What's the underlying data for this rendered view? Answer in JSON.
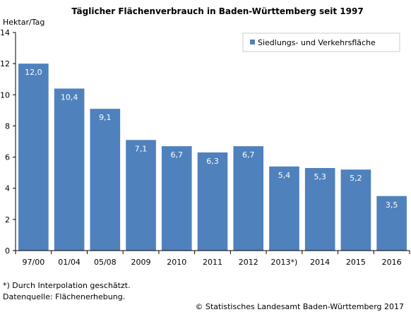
{
  "chart_data": {
    "type": "bar",
    "title": "Täglicher Flächenverbrauch in Baden-Württemberg seit 1997",
    "ylabel": "Hektar/Tag",
    "xlabel": "",
    "categories": [
      "97/00",
      "01/04",
      "05/08",
      "2009",
      "2010",
      "2011",
      "2012",
      "2013*)",
      "2014",
      "2015",
      "2016"
    ],
    "series": [
      {
        "name": "Siedlungs- und Verkehrsfläche",
        "values": [
          12.0,
          10.4,
          9.1,
          7.1,
          6.7,
          6.3,
          6.7,
          5.4,
          5.3,
          5.2,
          3.5
        ],
        "value_labels": [
          "12,0",
          "10,4",
          "9,1",
          "7,1",
          "6,7",
          "6,3",
          "6,7",
          "5,4",
          "5,3",
          "5,2",
          "3,5"
        ],
        "color": "#4f81bd"
      }
    ],
    "ylim": [
      0,
      14
    ],
    "yticks": [
      0,
      2,
      4,
      6,
      8,
      10,
      12,
      14
    ],
    "grid": false,
    "legend_position": "top-right"
  },
  "footnotes": {
    "note": "*) Durch Interpolation geschätzt.",
    "source": "Datenquelle: Flächenerhebung.",
    "copyright": "© Statistisches Landesamt Baden-Württemberg 2017"
  }
}
